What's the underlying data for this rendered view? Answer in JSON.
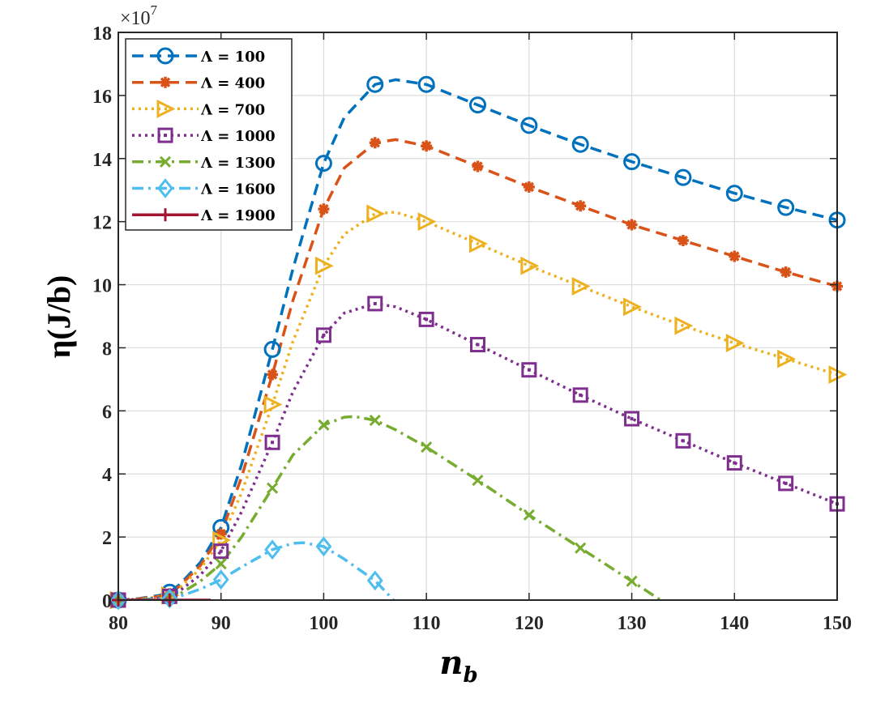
{
  "chart_data": {
    "type": "line",
    "title": "",
    "xlabel": "n",
    "xlabel_subscript": "b",
    "ylabel": "η(J/b)",
    "y_exponent_label": "×10",
    "y_exponent_power": "7",
    "xlim": [
      80,
      150
    ],
    "ylim": [
      0,
      18
    ],
    "xticks": [
      80,
      90,
      100,
      110,
      120,
      130,
      140,
      150
    ],
    "yticks": [
      0,
      2,
      4,
      6,
      8,
      10,
      12,
      14,
      16,
      18
    ],
    "grid": true,
    "legend_position": "top-left",
    "series": [
      {
        "name": "Λ = 100",
        "color": "#0072BD",
        "dash": "dashed",
        "marker": "circle",
        "x": [
          80,
          85,
          90,
          95,
          100,
          105,
          110,
          115,
          120,
          125,
          130,
          135,
          140,
          145,
          150
        ],
        "y": [
          0,
          0.25,
          2.3,
          7.95,
          13.85,
          16.35,
          16.35,
          15.7,
          15.05,
          14.45,
          13.9,
          13.4,
          12.9,
          12.45,
          12.05
        ],
        "curve": [
          [
            80,
            0
          ],
          [
            82,
            0.05
          ],
          [
            84,
            0.15
          ],
          [
            85,
            0.25
          ],
          [
            86,
            0.5
          ],
          [
            88,
            1.2
          ],
          [
            90,
            2.3
          ],
          [
            92,
            4.3
          ],
          [
            95,
            7.95
          ],
          [
            97,
            10.5
          ],
          [
            100,
            13.85
          ],
          [
            102,
            15.3
          ],
          [
            105,
            16.35
          ],
          [
            107,
            16.5
          ],
          [
            110,
            16.35
          ],
          [
            115,
            15.7
          ],
          [
            120,
            15.05
          ],
          [
            125,
            14.45
          ],
          [
            130,
            13.9
          ],
          [
            135,
            13.4
          ],
          [
            140,
            12.9
          ],
          [
            145,
            12.45
          ],
          [
            150,
            12.05
          ]
        ]
      },
      {
        "name": "Λ = 400",
        "color": "#D95319",
        "dash": "dashed",
        "marker": "asterisk",
        "x": [
          80,
          85,
          90,
          95,
          100,
          105,
          110,
          115,
          120,
          125,
          130,
          135,
          140,
          145,
          150
        ],
        "y": [
          0,
          0.2,
          2.1,
          7.15,
          12.4,
          14.5,
          14.4,
          13.75,
          13.1,
          12.5,
          11.9,
          11.4,
          10.9,
          10.4,
          9.95
        ],
        "curve": [
          [
            80,
            0
          ],
          [
            82,
            0.04
          ],
          [
            84,
            0.12
          ],
          [
            85,
            0.2
          ],
          [
            86,
            0.45
          ],
          [
            88,
            1.1
          ],
          [
            90,
            2.1
          ],
          [
            92,
            3.9
          ],
          [
            95,
            7.15
          ],
          [
            97,
            9.5
          ],
          [
            100,
            12.4
          ],
          [
            102,
            13.7
          ],
          [
            105,
            14.5
          ],
          [
            107,
            14.6
          ],
          [
            110,
            14.4
          ],
          [
            115,
            13.75
          ],
          [
            120,
            13.1
          ],
          [
            125,
            12.5
          ],
          [
            130,
            11.9
          ],
          [
            135,
            11.4
          ],
          [
            140,
            10.9
          ],
          [
            145,
            10.4
          ],
          [
            150,
            9.95
          ]
        ]
      },
      {
        "name": "Λ  = 700",
        "color": "#EDB120",
        "dash": "dotted",
        "marker": "triangle-right",
        "x": [
          80,
          85,
          90,
          95,
          100,
          105,
          110,
          115,
          120,
          125,
          130,
          135,
          140,
          145,
          150
        ],
        "y": [
          0,
          0.15,
          1.9,
          6.2,
          10.6,
          12.25,
          12.0,
          11.3,
          10.6,
          9.95,
          9.3,
          8.7,
          8.15,
          7.65,
          7.15
        ],
        "curve": [
          [
            80,
            0
          ],
          [
            82,
            0.03
          ],
          [
            84,
            0.1
          ],
          [
            85,
            0.15
          ],
          [
            86,
            0.4
          ],
          [
            88,
            1.0
          ],
          [
            90,
            1.9
          ],
          [
            92,
            3.4
          ],
          [
            95,
            6.2
          ],
          [
            97,
            8.2
          ],
          [
            100,
            10.6
          ],
          [
            102,
            11.6
          ],
          [
            105,
            12.25
          ],
          [
            107,
            12.3
          ],
          [
            110,
            12.0
          ],
          [
            115,
            11.3
          ],
          [
            120,
            10.6
          ],
          [
            125,
            9.95
          ],
          [
            130,
            9.3
          ],
          [
            135,
            8.7
          ],
          [
            140,
            8.15
          ],
          [
            145,
            7.65
          ],
          [
            150,
            7.15
          ]
        ]
      },
      {
        "name": "Λ  = 1000",
        "color": "#7E2F8E",
        "dash": "dotted",
        "marker": "square",
        "x": [
          80,
          85,
          90,
          95,
          100,
          105,
          110,
          115,
          120,
          125,
          130,
          135,
          140,
          145,
          150
        ],
        "y": [
          0,
          0.12,
          1.55,
          5.0,
          8.4,
          9.4,
          8.9,
          8.1,
          7.3,
          6.5,
          5.75,
          5.05,
          4.35,
          3.7,
          3.05
        ],
        "curve": [
          [
            80,
            0
          ],
          [
            82,
            0.02
          ],
          [
            84,
            0.08
          ],
          [
            85,
            0.12
          ],
          [
            86,
            0.3
          ],
          [
            88,
            0.8
          ],
          [
            90,
            1.55
          ],
          [
            92,
            2.8
          ],
          [
            95,
            5.0
          ],
          [
            97,
            6.6
          ],
          [
            100,
            8.4
          ],
          [
            102,
            9.1
          ],
          [
            105,
            9.4
          ],
          [
            107,
            9.3
          ],
          [
            110,
            8.9
          ],
          [
            115,
            8.1
          ],
          [
            120,
            7.3
          ],
          [
            125,
            6.5
          ],
          [
            130,
            5.75
          ],
          [
            135,
            5.05
          ],
          [
            140,
            4.35
          ],
          [
            145,
            3.7
          ],
          [
            150,
            3.05
          ]
        ]
      },
      {
        "name": "Λ  = 1300",
        "color": "#77AC30",
        "dash": "dashdot",
        "marker": "x",
        "x": [
          80,
          85,
          90,
          95,
          100,
          105,
          110,
          115,
          120,
          125,
          130
        ],
        "y": [
          0,
          0.08,
          1.15,
          3.55,
          5.55,
          5.7,
          4.85,
          3.8,
          2.7,
          1.65,
          0.6
        ],
        "curve": [
          [
            80,
            0
          ],
          [
            82,
            0.02
          ],
          [
            84,
            0.05
          ],
          [
            85,
            0.08
          ],
          [
            86,
            0.2
          ],
          [
            88,
            0.6
          ],
          [
            90,
            1.15
          ],
          [
            92,
            2.0
          ],
          [
            95,
            3.55
          ],
          [
            97,
            4.6
          ],
          [
            100,
            5.55
          ],
          [
            102,
            5.8
          ],
          [
            103,
            5.82
          ],
          [
            105,
            5.7
          ],
          [
            107,
            5.4
          ],
          [
            110,
            4.85
          ],
          [
            115,
            3.8
          ],
          [
            120,
            2.7
          ],
          [
            125,
            1.65
          ],
          [
            130,
            0.6
          ],
          [
            132.8,
            0
          ]
        ]
      },
      {
        "name": "Λ  = 1600",
        "color": "#4DBEEE",
        "dash": "dashdot",
        "marker": "diamond",
        "x": [
          80,
          85,
          90,
          95,
          100,
          105
        ],
        "y": [
          0,
          0.05,
          0.65,
          1.6,
          1.7,
          0.62
        ],
        "curve": [
          [
            80,
            0
          ],
          [
            82,
            0.01
          ],
          [
            84,
            0.03
          ],
          [
            85,
            0.05
          ],
          [
            86,
            0.12
          ],
          [
            88,
            0.35
          ],
          [
            90,
            0.65
          ],
          [
            92,
            1.05
          ],
          [
            95,
            1.6
          ],
          [
            97,
            1.8
          ],
          [
            98,
            1.82
          ],
          [
            100,
            1.7
          ],
          [
            102,
            1.3
          ],
          [
            105,
            0.62
          ],
          [
            106.8,
            0
          ]
        ]
      },
      {
        "name": "Λ  = 1900",
        "color": "#A2142F",
        "dash": "solid",
        "marker": "plus",
        "x": [
          80,
          85
        ],
        "y": [
          0,
          0
        ],
        "curve": [
          [
            80,
            0
          ],
          [
            85,
            0
          ],
          [
            89,
            0
          ]
        ]
      }
    ]
  }
}
